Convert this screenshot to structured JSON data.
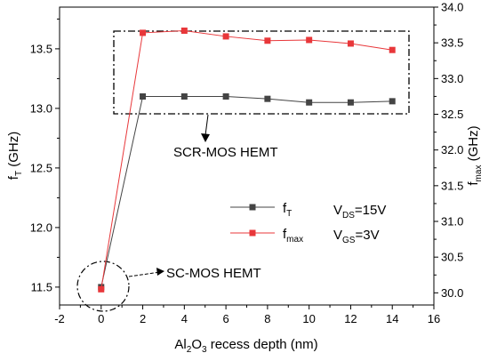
{
  "chart_data": {
    "type": "line",
    "xlabel": "Al2O3 recess depth (nm)",
    "xlabel_parts": {
      "pre": "Al",
      "sub1": "2",
      "mid": "O",
      "sub2": "3",
      "post": " recess depth (nm)"
    },
    "ylabel_left": {
      "main": "f",
      "sub": "T",
      "unit": " (GHz)"
    },
    "ylabel_right": {
      "main": "f",
      "sub": "max",
      "unit": " (GHz)"
    },
    "xlim": [
      -2,
      16
    ],
    "ylim_left": [
      11.35,
      13.85
    ],
    "ylim_right": [
      29.83,
      34.0
    ],
    "x_ticks": [
      "-2",
      "0",
      "2",
      "4",
      "6",
      "8",
      "10",
      "12",
      "14",
      "16"
    ],
    "y_left_ticks": [
      "11.5",
      "12.0",
      "12.5",
      "13.0",
      "13.5"
    ],
    "y_right_ticks": [
      "30.0",
      "30.5",
      "31.0",
      "31.5",
      "32.0",
      "32.5",
      "33.0",
      "33.5",
      "34.0"
    ],
    "grid": false,
    "legend_position": "center-right",
    "series": [
      {
        "name": "fT",
        "label_main": "f",
        "label_sub": "T",
        "axis": "left",
        "color": "#444444",
        "marker": "square",
        "x": [
          0,
          2,
          4,
          6,
          8,
          10,
          12,
          14
        ],
        "y": [
          11.5,
          13.1,
          13.1,
          13.1,
          13.08,
          13.05,
          13.05,
          13.06
        ]
      },
      {
        "name": "fmax",
        "label_main": "f",
        "label_sub": "max",
        "axis": "right",
        "color": "#e8373a",
        "marker": "square",
        "x": [
          0,
          2,
          4,
          6,
          8,
          10,
          12,
          14
        ],
        "y": [
          30.05,
          33.64,
          33.67,
          33.59,
          33.53,
          33.54,
          33.49,
          33.4
        ]
      }
    ],
    "conditions": [
      {
        "main": "V",
        "sub": "DS",
        "rest": "=15V"
      },
      {
        "main": "V",
        "sub": "GS",
        "rest": "=3V"
      }
    ],
    "annotations": [
      {
        "text": "SCR-MOS HEMT",
        "target": "dash-dot box around x=2 to 14"
      },
      {
        "text": "SC-MOS HEMT",
        "target": "dash-dot ellipse around x=0"
      }
    ]
  }
}
